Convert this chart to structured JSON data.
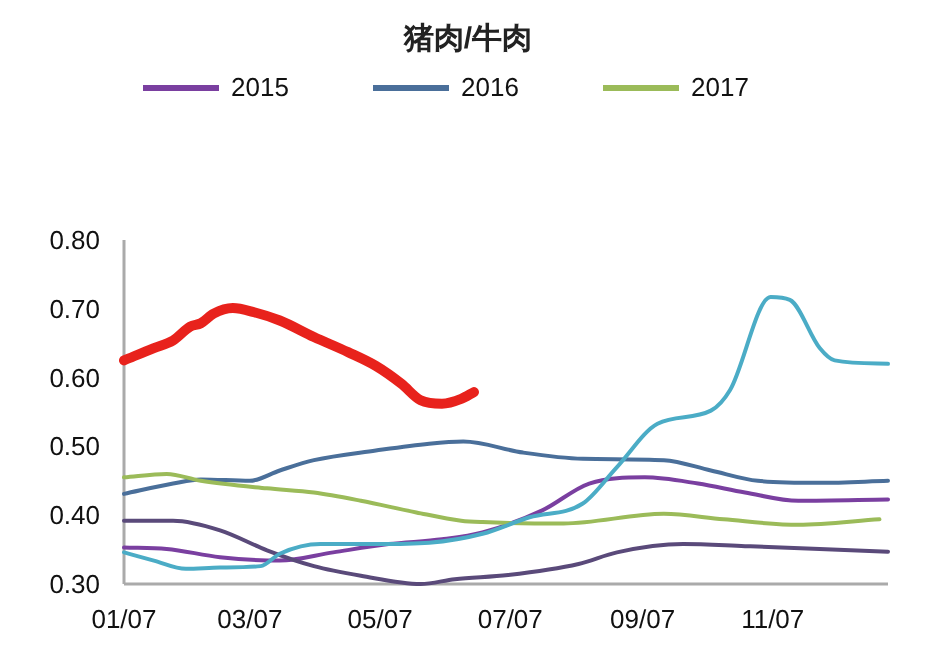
{
  "chart_data": {
    "type": "line",
    "title": "猪肉/牛肉",
    "legend": "top",
    "xlim": [
      "--01-07",
      "--12-31"
    ],
    "xticks": [
      {
        "value": "--01-07",
        "label": "01/07"
      },
      {
        "value": "--03-07",
        "label": "03/07"
      },
      {
        "value": "--05-07",
        "label": "05/07"
      },
      {
        "value": "--07-07",
        "label": "07/07"
      },
      {
        "value": "--09-07",
        "label": "09/07"
      },
      {
        "value": "--11-07",
        "label": "11/07"
      }
    ],
    "ylim": [
      0.3,
      0.8
    ],
    "yticks": [
      {
        "value": 0.3,
        "label": "0.30"
      },
      {
        "value": 0.4,
        "label": "0.40"
      },
      {
        "value": 0.5,
        "label": "0.50"
      },
      {
        "value": 0.6,
        "label": "0.60"
      },
      {
        "value": 0.7,
        "label": "0.70"
      },
      {
        "value": 0.8,
        "label": "0.80"
      }
    ],
    "series": [
      {
        "name": "2015",
        "color": "#7a3fa0",
        "x": [
          "--01-07",
          "--01-27",
          "--02-21",
          "--03-21",
          "--04-15",
          "--05-11",
          "--06-05",
          "--06-24",
          "--07-22",
          "--08-13",
          "--09-08",
          "--10-03",
          "--10-25",
          "--11-19",
          "--12-31"
        ],
        "values": [
          0.353,
          0.351,
          0.339,
          0.334,
          0.346,
          0.358,
          0.365,
          0.375,
          0.407,
          0.446,
          0.455,
          0.446,
          0.433,
          0.421,
          0.423
        ]
      },
      {
        "name": "2016",
        "color": "#4a6f9a",
        "x": [
          "--01-07",
          "--01-30",
          "--02-12",
          "--03-07",
          "--03-21",
          "--04-06",
          "--05-05",
          "--05-30",
          "--06-15",
          "--07-13",
          "--08-10",
          "--09-17",
          "--10-09",
          "--10-31",
          "--11-29",
          "--12-31"
        ],
        "values": [
          0.431,
          0.446,
          0.452,
          0.45,
          0.465,
          0.48,
          0.494,
          0.504,
          0.507,
          0.491,
          0.482,
          0.48,
          0.465,
          0.45,
          0.447,
          0.45
        ]
      },
      {
        "name": "2017",
        "color": "#9bbb59",
        "x": [
          "--01-07",
          "--01-27",
          "--02-12",
          "--03-15",
          "--04-06",
          "--04-28",
          "--05-24",
          "--06-14",
          "--06-24",
          "--08-01",
          "--09-17",
          "--10-15",
          "--11-19",
          "--12-27"
        ],
        "values": [
          0.455,
          0.46,
          0.45,
          0.439,
          0.433,
          0.421,
          0.404,
          0.392,
          0.39,
          0.388,
          0.402,
          0.394,
          0.386,
          0.394
        ]
      },
      {
        "color": "#5a4a7a",
        "x": [
          "--01-07",
          "--01-30",
          "--02-21",
          "--03-15",
          "--04-06",
          "--04-28",
          "--05-26",
          "--06-11",
          "--07-06",
          "--08-08",
          "--08-26",
          "--09-26",
          "--10-25",
          "--11-29",
          "--12-31"
        ],
        "values": [
          0.392,
          0.392,
          0.378,
          0.349,
          0.326,
          0.312,
          0.3,
          0.307,
          0.313,
          0.329,
          0.346,
          0.358,
          0.355,
          0.351,
          0.347
        ]
      },
      {
        "color": "#4bacc6",
        "x": [
          "--01-07",
          "--01-21",
          "--02-05",
          "--02-21",
          "--03-12",
          "--03-21",
          "--04-09",
          "--05-05",
          "--05-30",
          "--06-24",
          "--07-16",
          "--08-10",
          "--08-26",
          "--09-14",
          "--10-09",
          "--10-18",
          "--11-06",
          "--11-15",
          "--11-29",
          "--12-06",
          "--12-31"
        ],
        "values": [
          0.346,
          0.334,
          0.322,
          0.324,
          0.326,
          0.344,
          0.358,
          0.358,
          0.36,
          0.373,
          0.397,
          0.417,
          0.47,
          0.533,
          0.552,
          0.582,
          0.717,
          0.713,
          0.643,
          0.625,
          0.62
        ]
      },
      {
        "color": "#e8221c",
        "x": [
          "--01-07",
          "--01-21",
          "--01-30",
          "--02-07",
          "--02-12",
          "--02-18",
          "--02-27",
          "--03-09",
          "--03-21",
          "--04-06",
          "--04-22",
          "--05-05",
          "--05-17",
          "--05-26",
          "--06-05",
          "--06-14",
          "--06-20"
        ],
        "values": [
          0.625,
          0.643,
          0.654,
          0.674,
          0.679,
          0.693,
          0.701,
          0.695,
          0.683,
          0.659,
          0.637,
          0.617,
          0.591,
          0.567,
          0.562,
          0.569,
          0.579
        ]
      }
    ]
  }
}
